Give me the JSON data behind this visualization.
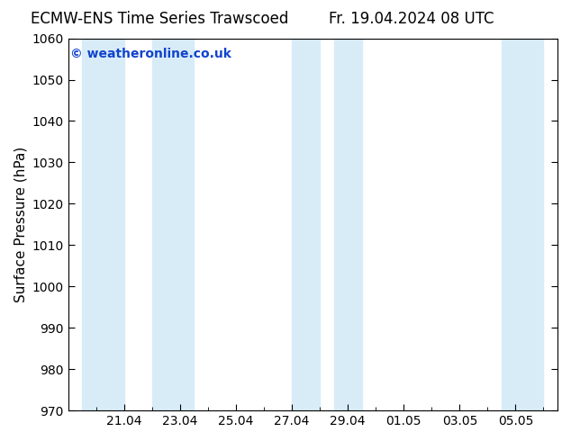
{
  "title_left": "ECMW-ENS Time Series Trawscoed",
  "title_right": "Fr. 19.04.2024 08 UTC",
  "ylabel": "Surface Pressure (hPa)",
  "ylim": [
    970,
    1060
  ],
  "ytick_interval": 10,
  "background_color": "#ffffff",
  "plot_bg_color": "#ffffff",
  "watermark": "© weatheronline.co.uk",
  "watermark_color": "#1144cc",
  "shaded_bands": [
    {
      "xstart": 19.5,
      "xend": 21.0,
      "color": "#d8ecf8"
    },
    {
      "xstart": 22.0,
      "xend": 23.5,
      "color": "#d8ecf8"
    },
    {
      "xstart": 27.0,
      "xend": 28.0,
      "color": "#d8ecf8"
    },
    {
      "xstart": 28.5,
      "xend": 29.5,
      "color": "#d8ecf8"
    },
    {
      "xstart": 34.5,
      "xend": 36.0,
      "color": "#d8ecf8"
    }
  ],
  "xtick_labels": [
    "21.04",
    "23.04",
    "25.04",
    "27.04",
    "29.04",
    "01.05",
    "03.05",
    "05.05"
  ],
  "xtick_positions": [
    21.0,
    23.0,
    25.0,
    27.0,
    29.0,
    31.0,
    33.0,
    35.0
  ],
  "xlim": [
    19.0,
    36.5
  ],
  "minor_xtick_interval": 1.0,
  "tick_color": "#000000",
  "title_fontsize": 12,
  "label_fontsize": 11,
  "tick_fontsize": 10,
  "watermark_fontsize": 10
}
